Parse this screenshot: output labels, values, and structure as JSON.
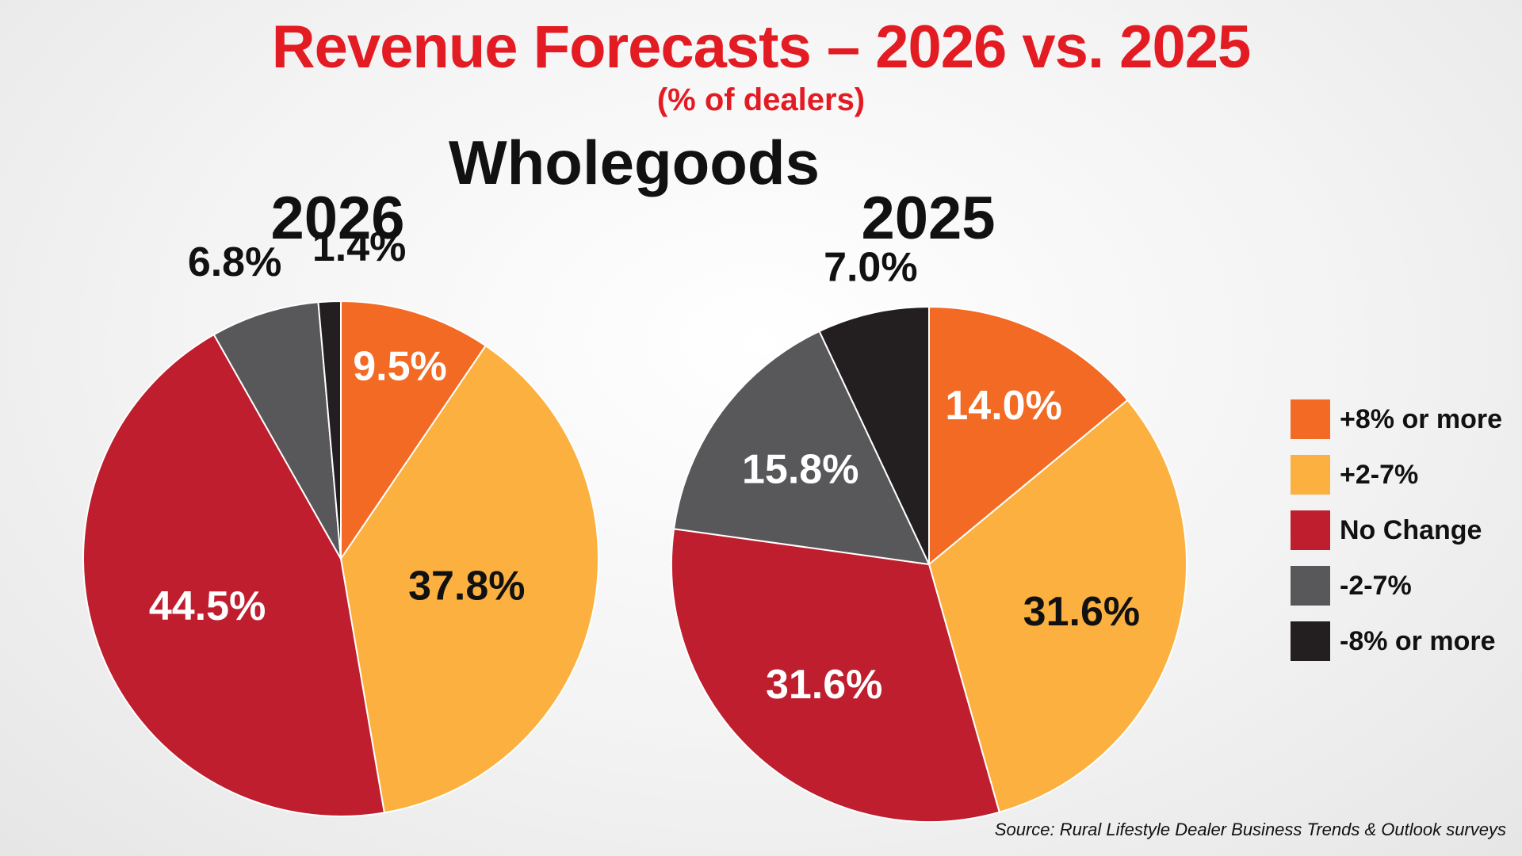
{
  "title": "Revenue Forecasts – 2026 vs. 2025",
  "subtitle": "(% of dealers)",
  "section": "Wholegoods",
  "source": "Source: Rural Lifestyle Dealer Business Trends & Outlook surveys",
  "colors": {
    "plus8": "#f26a24",
    "plus2_7": "#fbb040",
    "no_change": "#be1e2d",
    "minus2_7": "#58585a",
    "minus8": "#231f20"
  },
  "legend": [
    {
      "label": "+8% or more",
      "color": "#f26a24"
    },
    {
      "label": "+2-7%",
      "color": "#fbb040"
    },
    {
      "label": "No Change",
      "color": "#be1e2d"
    },
    {
      "label": "-2-7%",
      "color": "#58585a"
    },
    {
      "label": "-8% or more",
      "color": "#231f20"
    }
  ],
  "chart_data": [
    {
      "type": "pie",
      "title": "2026",
      "categories": [
        "+8% or more",
        "+2-7%",
        "No Change",
        "-2-7%",
        "-8% or more"
      ],
      "values": [
        9.5,
        37.8,
        44.5,
        6.8,
        1.4
      ],
      "labels": [
        "9.5%",
        "37.8%",
        "44.5%",
        "6.8%",
        "1.4%"
      ]
    },
    {
      "type": "pie",
      "title": "2025",
      "categories": [
        "+8% or more",
        "+2-7%",
        "No Change",
        "-2-7%",
        "-8% or more"
      ],
      "values": [
        14.0,
        31.6,
        31.6,
        15.8,
        7.0
      ],
      "labels": [
        "14.0%",
        "31.6%",
        "31.6%",
        "15.8%",
        "7.0%"
      ]
    }
  ]
}
